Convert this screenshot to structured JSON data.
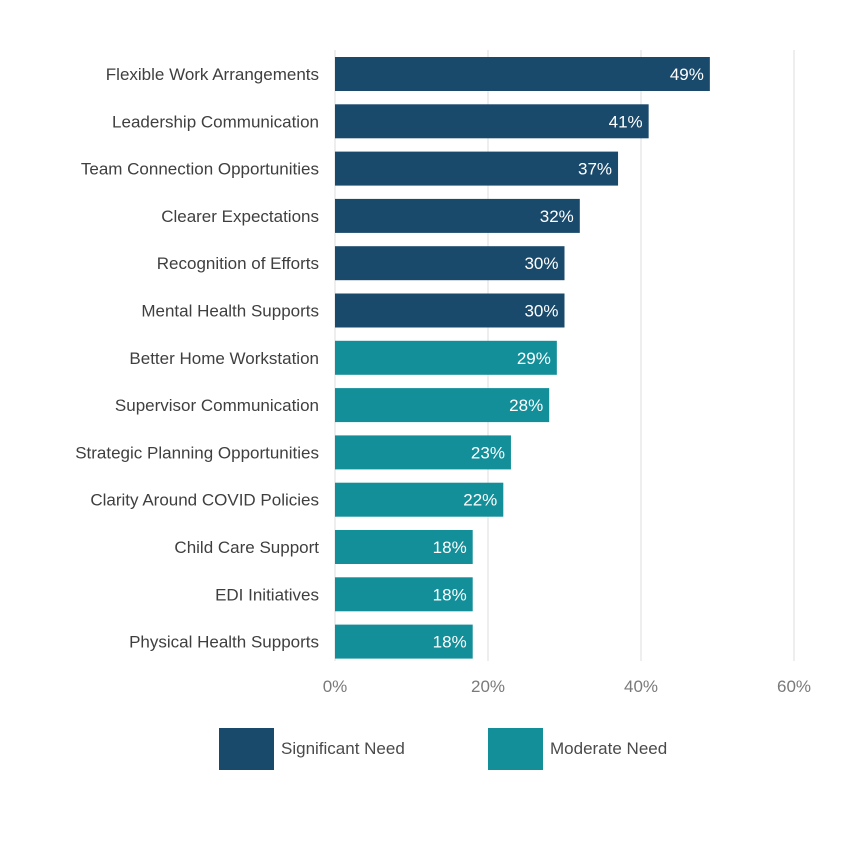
{
  "chart_data": {
    "type": "bar",
    "orientation": "horizontal",
    "title": "",
    "xlabel": "",
    "ylabel": "",
    "categories": [
      "Flexible Work Arrangements",
      "Leadership Communication",
      "Team Connection Opportunities",
      "Clearer Expectations",
      "Recognition of Efforts",
      "Mental Health Supports",
      "Better Home Workstation",
      "Supervisor Communication",
      "Strategic Planning Opportunities",
      "Clarity Around COVID Policies",
      "Child Care Support",
      "EDI Initiatives",
      "Physical Health Supports"
    ],
    "values": [
      49,
      41,
      37,
      32,
      30,
      30,
      29,
      28,
      23,
      22,
      18,
      18,
      18
    ],
    "value_labels": [
      "49%",
      "41%",
      "37%",
      "32%",
      "30%",
      "30%",
      "29%",
      "28%",
      "23%",
      "22%",
      "18%",
      "18%",
      "18%"
    ],
    "groups": [
      "Significant Need",
      "Significant Need",
      "Significant Need",
      "Significant Need",
      "Significant Need",
      "Significant Need",
      "Moderate Need",
      "Moderate Need",
      "Moderate Need",
      "Moderate Need",
      "Moderate Need",
      "Moderate Need",
      "Moderate Need"
    ],
    "xlim": [
      0,
      60
    ],
    "xticks": [
      0,
      20,
      40,
      60
    ],
    "xtick_labels": [
      "0%",
      "20%",
      "40%",
      "60%"
    ],
    "grid": true,
    "legend_position": "bottom",
    "legend": [
      {
        "name": "Significant Need",
        "color": "#1a4a6b"
      },
      {
        "name": "Moderate Need",
        "color": "#138f9a"
      }
    ]
  }
}
